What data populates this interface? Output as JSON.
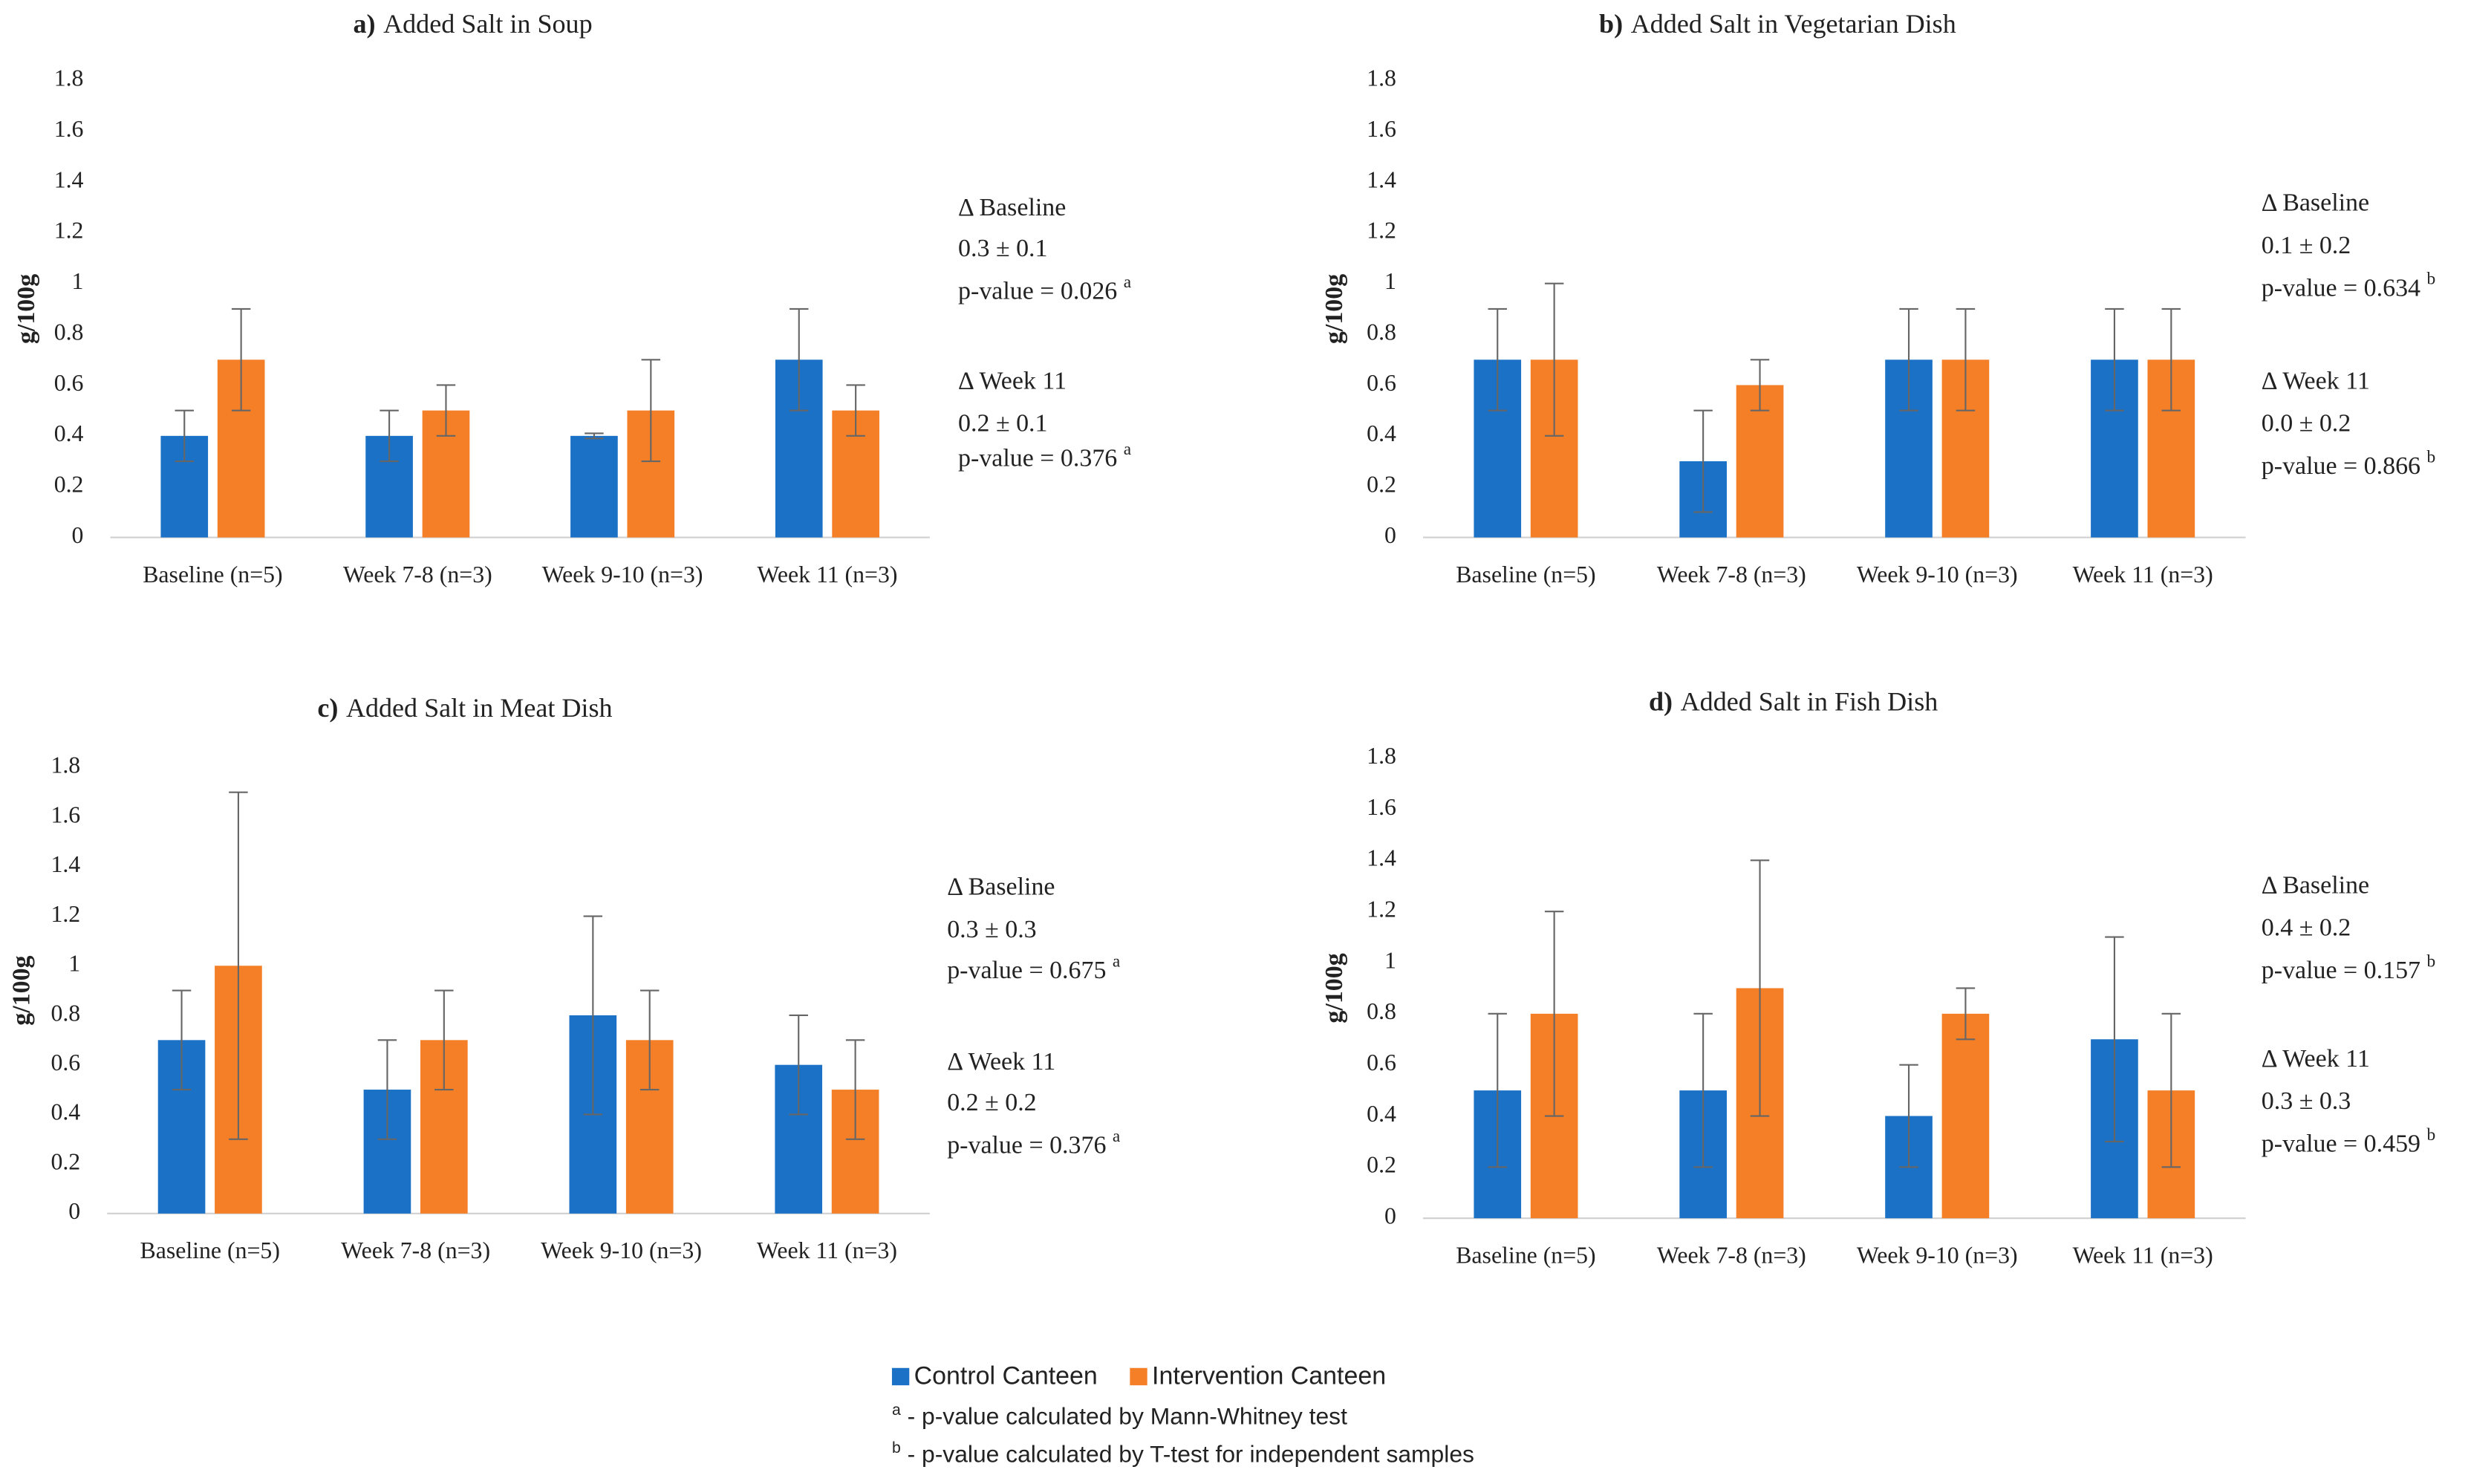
{
  "chart_data": [
    {
      "type": "bar",
      "label": "a)",
      "title": "Added Salt in Soup",
      "ylabel": "g/100g",
      "categories": [
        "Baseline (n=5)",
        "Week 7-8 (n=3)",
        "Week 9-10 (n=3)",
        "Week 11 (n=3)"
      ],
      "series": [
        {
          "values": [
            0.4,
            0.4,
            0.4,
            0.7
          ],
          "errors": [
            0.1,
            0.1,
            0.01,
            0.2
          ]
        },
        {
          "values": [
            0.7,
            0.5,
            0.5,
            0.5
          ],
          "errors": [
            0.2,
            0.1,
            0.2,
            0.1
          ]
        }
      ],
      "ylim": [
        0,
        1.8
      ],
      "yticks": [
        0,
        0.2,
        0.4,
        0.6,
        0.8,
        1,
        1.2,
        1.4,
        1.6,
        1.8
      ],
      "annotations": [
        {
          "label": "Δ Baseline",
          "diff": "0.3 ± 0.1",
          "p": "p-value = 0.026",
          "note": "a"
        },
        {
          "label": "Δ Week 11",
          "diff": "0.2 ± 0.1",
          "p": "p-value = 0.376",
          "note": "a"
        }
      ]
    },
    {
      "type": "bar",
      "label": "b)",
      "title": "Added Salt in Vegetarian Dish",
      "ylabel": "g/100g",
      "categories": [
        "Baseline (n=5)",
        "Week 7-8 (n=3)",
        "Week 9-10 (n=3)",
        "Week 11 (n=3)"
      ],
      "series": [
        {
          "values": [
            0.7,
            0.3,
            0.7,
            0.7
          ],
          "errors": [
            0.2,
            0.2,
            0.2,
            0.2
          ]
        },
        {
          "values": [
            0.7,
            0.6,
            0.7,
            0.7
          ],
          "errors": [
            0.3,
            0.1,
            0.2,
            0.2
          ]
        }
      ],
      "ylim": [
        0,
        1.8
      ],
      "yticks": [
        0,
        0.2,
        0.4,
        0.6,
        0.8,
        1,
        1.2,
        1.4,
        1.6,
        1.8
      ],
      "annotations": [
        {
          "label": "Δ Baseline",
          "diff": "0.1 ± 0.2",
          "p": "p-value = 0.634",
          "note": "b"
        },
        {
          "label": "Δ Week 11",
          "diff": "0.0 ± 0.2",
          "p": "p-value =  0.866",
          "note": "b"
        }
      ]
    },
    {
      "type": "bar",
      "label": "c)",
      "title": "Added Salt in Meat Dish",
      "ylabel": "g/100g",
      "categories": [
        "Baseline (n=5)",
        "Week 7-8 (n=3)",
        "Week 9-10 (n=3)",
        "Week 11 (n=3)"
      ],
      "series": [
        {
          "values": [
            0.7,
            0.5,
            0.8,
            0.6
          ],
          "errors": [
            0.2,
            0.2,
            0.4,
            0.2
          ]
        },
        {
          "values": [
            1.0,
            0.7,
            0.7,
            0.5
          ],
          "errors": [
            0.7,
            0.2,
            0.2,
            0.2
          ]
        }
      ],
      "ylim": [
        0,
        1.8
      ],
      "yticks": [
        0,
        0.2,
        0.4,
        0.6,
        0.8,
        1,
        1.2,
        1.4,
        1.6,
        1.8
      ],
      "annotations": [
        {
          "label": "Δ Baseline",
          "diff": "0.3 ± 0.3",
          "p": "p-value = 0.675",
          "note": "a"
        },
        {
          "label": "Δ Week 11",
          "diff": "0.2 ± 0.2",
          "p": "p-value = 0.376",
          "note": "a"
        }
      ]
    },
    {
      "type": "bar",
      "label": "d)",
      "title": "Added Salt in Fish Dish",
      "ylabel": "g/100g",
      "categories": [
        "Baseline (n=5)",
        "Week 7-8 (n=3)",
        "Week 9-10 (n=3)",
        "Week 11 (n=3)"
      ],
      "series": [
        {
          "values": [
            0.5,
            0.5,
            0.4,
            0.7
          ],
          "errors": [
            0.3,
            0.3,
            0.2,
            0.4
          ]
        },
        {
          "values": [
            0.8,
            0.9,
            0.8,
            0.5
          ],
          "errors": [
            0.4,
            0.5,
            0.1,
            0.3
          ]
        }
      ],
      "ylim": [
        0,
        1.8
      ],
      "yticks": [
        0,
        0.2,
        0.4,
        0.6,
        0.8,
        1,
        1.2,
        1.4,
        1.6,
        1.8
      ],
      "annotations": [
        {
          "label": "Δ Baseline",
          "diff": "0.4 ± 0.2",
          "p": "p-value = 0.157",
          "note": "b"
        },
        {
          "label": "Δ Week 11",
          "diff": "0.3 ± 0.3",
          "p": "p-value = 0.459",
          "note": "b"
        }
      ]
    }
  ],
  "legend": [
    {
      "name": "Control Canteen",
      "color": "#1a71c6"
    },
    {
      "name": "Intervention Canteen",
      "color": "#f47f27"
    }
  ],
  "footnotes": [
    {
      "mark": "a",
      "text": " - p-value calculated by Mann-Whitney test"
    },
    {
      "mark": "b",
      "text": " - p-value calculated by T-test for independent samples"
    }
  ]
}
